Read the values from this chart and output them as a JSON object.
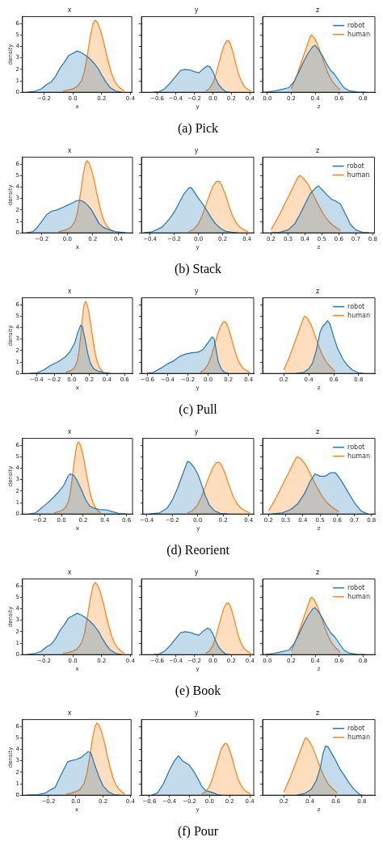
{
  "chart_data": [
    {
      "type": "area",
      "title": "x",
      "xlabel": "x",
      "ylabel": "density",
      "xlim": [
        -0.35,
        0.41
      ],
      "xticks": [
        {
          "value": -0.2,
          "label": "−0.2"
        },
        {
          "value": 0,
          "label": "0.0"
        },
        {
          "value": 0.2,
          "label": "0.2"
        },
        {
          "value": 0.4,
          "label": "0.4"
        }
      ],
      "ylim": [
        0,
        6.6
      ],
      "yticks": [
        0,
        1,
        2,
        3,
        4,
        5,
        6
      ],
      "series": [
        {
          "color": "#1f77b4",
          "x": [
            -0.32,
            -0.26,
            -0.22,
            -0.18,
            -0.15,
            -0.12,
            -0.09,
            -0.06,
            -0.03,
            0.0,
            0.03,
            0.06,
            0.09,
            0.12,
            0.15,
            0.18,
            0.2,
            0.23,
            0.26,
            0.3,
            0.34
          ],
          "values": [
            0,
            0.1,
            0.3,
            0.7,
            0.9,
            1.4,
            2.1,
            2.6,
            3.2,
            3.4,
            3.6,
            3.45,
            3.2,
            2.9,
            2.5,
            2.0,
            1.5,
            0.9,
            0.4,
            0.1,
            0
          ]
        },
        {
          "color": "#ff7f0e",
          "x": [
            -0.07,
            -0.03,
            0.0,
            0.03,
            0.06,
            0.08,
            0.1,
            0.12,
            0.14,
            0.155,
            0.17,
            0.19,
            0.21,
            0.23,
            0.25,
            0.27,
            0.29,
            0.31,
            0.33,
            0.36
          ],
          "values": [
            0.1,
            0.2,
            0.3,
            0.5,
            1.0,
            1.8,
            3.2,
            4.8,
            6.0,
            6.3,
            6.1,
            5.5,
            4.6,
            3.5,
            2.5,
            1.6,
            1.0,
            0.6,
            0.35,
            0.1
          ]
        }
      ]
    },
    {
      "type": "area",
      "title": "y",
      "xlabel": "y",
      "tick_labels": "x",
      "annotations": [
        "(a) Pick"
      ],
      "xlim": [
        -0.77,
        0.44
      ],
      "xticks": [
        {
          "value": -0.6,
          "label": "−0.6"
        },
        {
          "value": -0.4,
          "label": "−0.4"
        },
        {
          "value": -0.2,
          "label": "−0.2"
        },
        {
          "value": 0,
          "label": "0.0"
        },
        {
          "value": 0.2,
          "label": "0.2"
        },
        {
          "value": 0.4,
          "label": "0.4"
        }
      ],
      "ylim": [
        0,
        6.6
      ],
      "yticks": [
        0,
        1,
        2,
        3,
        4,
        5,
        6
      ],
      "series": [
        {
          "color": "#1f77b4",
          "x": [
            -0.64,
            -0.58,
            -0.52,
            -0.46,
            -0.4,
            -0.35,
            -0.3,
            -0.25,
            -0.2,
            -0.15,
            -0.11,
            -0.06,
            -0.03,
            0.0,
            0.03,
            0.06,
            0.1,
            0.14,
            0.18
          ],
          "values": [
            0,
            0.05,
            0.3,
            0.8,
            1.4,
            1.9,
            2.0,
            1.95,
            1.8,
            1.7,
            2.0,
            2.3,
            2.2,
            1.8,
            1.2,
            0.7,
            0.3,
            0.05,
            0
          ]
        },
        {
          "color": "#ff7f0e",
          "x": [
            -0.08,
            -0.04,
            0.0,
            0.03,
            0.06,
            0.09,
            0.12,
            0.15,
            0.17,
            0.19,
            0.22,
            0.25,
            0.28,
            0.31,
            0.34,
            0.37,
            0.41
          ],
          "values": [
            0.1,
            0.3,
            0.8,
            1.5,
            2.4,
            3.3,
            4.1,
            4.5,
            4.5,
            4.2,
            3.4,
            2.4,
            1.5,
            0.9,
            0.5,
            0.3,
            0.1
          ]
        }
      ]
    },
    {
      "type": "area",
      "title": "z",
      "xlabel": "z",
      "tick_labels": "x",
      "legend": "top right",
      "xlim": [
        -0.04,
        0.9
      ],
      "xticks": [
        {
          "value": 0,
          "label": "0.0"
        },
        {
          "value": 0.2,
          "label": "0.2"
        },
        {
          "value": 0.4,
          "label": "0.4"
        },
        {
          "value": 0.6,
          "label": "0.6"
        },
        {
          "value": 0.8,
          "label": "0.8"
        }
      ],
      "ylim": [
        0,
        6.6
      ],
      "yticks": [
        0,
        1,
        2,
        3,
        4,
        5,
        6
      ],
      "series": [
        {
          "name": "robot",
          "color": "#1f77b4",
          "x": [
            -0.02,
            0.05,
            0.12,
            0.18,
            0.22,
            0.26,
            0.3,
            0.34,
            0.38,
            0.4,
            0.43,
            0.46,
            0.5,
            0.53,
            0.56,
            0.6,
            0.64,
            0.68,
            0.75,
            0.82
          ],
          "values": [
            0,
            0.1,
            0.25,
            0.4,
            0.9,
            1.7,
            2.6,
            3.4,
            4.0,
            4.1,
            3.7,
            3.2,
            2.4,
            1.9,
            1.6,
            1.0,
            0.4,
            0.15,
            0.02,
            0
          ]
        },
        {
          "name": "human",
          "color": "#ff7f0e",
          "x": [
            0.2,
            0.22,
            0.25,
            0.28,
            0.31,
            0.34,
            0.36,
            0.37,
            0.39,
            0.42,
            0.45,
            0.48,
            0.51,
            0.54,
            0.57,
            0.61
          ],
          "values": [
            0.3,
            0.8,
            1.6,
            2.5,
            3.4,
            4.3,
            4.9,
            5.0,
            4.8,
            4.2,
            3.3,
            2.4,
            1.6,
            1.0,
            0.6,
            0.2
          ]
        }
      ]
    },
    {
      "type": "area",
      "title": "x",
      "xlabel": "x",
      "ylabel": "density",
      "xlim": [
        -0.35,
        0.51
      ],
      "xticks": [
        {
          "value": -0.2,
          "label": "−0.2"
        },
        {
          "value": 0,
          "label": "0.0"
        },
        {
          "value": 0.2,
          "label": "0.2"
        },
        {
          "value": 0.4,
          "label": "0.4"
        }
      ],
      "ylim": [
        0,
        6.6
      ],
      "yticks": [
        0,
        1,
        2,
        3,
        4,
        5,
        6
      ],
      "series": [
        {
          "color": "#1f77b4",
          "x": [
            -0.32,
            -0.27,
            -0.24,
            -0.2,
            -0.16,
            -0.12,
            -0.08,
            -0.04,
            0.0,
            0.04,
            0.07,
            0.1,
            0.13,
            0.16,
            0.19,
            0.22,
            0.25,
            0.28,
            0.32,
            0.38,
            0.46
          ],
          "values": [
            0,
            0.1,
            0.4,
            1.0,
            1.6,
            1.9,
            2.0,
            2.2,
            2.4,
            2.6,
            2.8,
            2.85,
            2.7,
            2.4,
            2.0,
            1.4,
            0.8,
            0.5,
            0.3,
            0.1,
            0
          ]
        },
        {
          "color": "#ff7f0e",
          "x": [
            -0.07,
            -0.03,
            0.0,
            0.03,
            0.06,
            0.08,
            0.1,
            0.12,
            0.14,
            0.155,
            0.17,
            0.19,
            0.21,
            0.23,
            0.25,
            0.27,
            0.29,
            0.31,
            0.33,
            0.36
          ],
          "values": [
            0.1,
            0.2,
            0.3,
            0.5,
            1.0,
            1.8,
            3.2,
            4.8,
            6.0,
            6.3,
            6.1,
            5.5,
            4.6,
            3.5,
            2.5,
            1.6,
            1.0,
            0.6,
            0.35,
            0.1
          ]
        }
      ]
    },
    {
      "type": "area",
      "title": "y",
      "xlabel": "y",
      "tick_labels": "x",
      "annotations": [
        "(b) Stack"
      ],
      "xlim": [
        -0.47,
        0.455
      ],
      "xticks": [
        {
          "value": -0.4,
          "label": "−0.4"
        },
        {
          "value": -0.2,
          "label": "−0.2"
        },
        {
          "value": 0,
          "label": "0.0"
        },
        {
          "value": 0.2,
          "label": "0.2"
        },
        {
          "value": 0.4,
          "label": "0.4"
        }
      ],
      "ylim": [
        0,
        6.6
      ],
      "yticks": [
        0,
        1,
        2,
        3,
        4,
        5,
        6
      ],
      "series": [
        {
          "color": "#1f77b4",
          "x": [
            -0.45,
            -0.38,
            -0.3,
            -0.24,
            -0.2,
            -0.16,
            -0.12,
            -0.08,
            -0.06,
            -0.03,
            0.0,
            0.03,
            0.06,
            0.1,
            0.14,
            0.18,
            0.22,
            0.28,
            0.32
          ],
          "values": [
            0,
            0.1,
            0.5,
            1.2,
            1.8,
            2.6,
            3.4,
            3.9,
            3.95,
            3.5,
            3.0,
            2.6,
            2.1,
            1.4,
            0.8,
            0.4,
            0.15,
            0.05,
            0
          ]
        },
        {
          "color": "#ff7f0e",
          "x": [
            -0.08,
            -0.04,
            0.0,
            0.03,
            0.06,
            0.09,
            0.12,
            0.15,
            0.17,
            0.19,
            0.22,
            0.25,
            0.28,
            0.31,
            0.34,
            0.37,
            0.41
          ],
          "values": [
            0.1,
            0.3,
            0.8,
            1.5,
            2.4,
            3.3,
            4.1,
            4.5,
            4.5,
            4.2,
            3.4,
            2.4,
            1.5,
            0.9,
            0.5,
            0.3,
            0.1
          ]
        }
      ]
    },
    {
      "type": "area",
      "title": "z",
      "xlabel": "z",
      "tick_labels": "x",
      "legend": "top right",
      "xlim": [
        0.15,
        0.81
      ],
      "xticks": [
        0.2,
        0.3,
        0.4,
        0.5,
        0.6,
        0.7,
        0.8
      ],
      "ylim": [
        0,
        6.6
      ],
      "yticks": [
        0,
        1,
        2,
        3,
        4,
        5,
        6
      ],
      "series": [
        {
          "name": "robot",
          "color": "#1f77b4",
          "x": [
            0.2,
            0.25,
            0.3,
            0.34,
            0.37,
            0.4,
            0.43,
            0.46,
            0.48,
            0.5,
            0.53,
            0.56,
            0.58,
            0.61,
            0.64,
            0.67,
            0.7,
            0.74,
            0.78
          ],
          "values": [
            0,
            0.05,
            0.25,
            0.8,
            1.6,
            2.5,
            3.4,
            3.9,
            4.1,
            3.8,
            3.3,
            2.9,
            2.8,
            2.5,
            1.6,
            0.7,
            0.25,
            0.05,
            0
          ]
        },
        {
          "name": "human",
          "color": "#ff7f0e",
          "x": [
            0.2,
            0.22,
            0.25,
            0.28,
            0.31,
            0.34,
            0.36,
            0.37,
            0.39,
            0.42,
            0.45,
            0.48,
            0.51,
            0.54,
            0.57,
            0.61
          ],
          "values": [
            0.3,
            0.8,
            1.6,
            2.5,
            3.4,
            4.3,
            4.9,
            5.0,
            4.8,
            4.2,
            3.3,
            2.4,
            1.6,
            1.0,
            0.6,
            0.2
          ]
        }
      ]
    },
    {
      "type": "area",
      "title": "x",
      "xlabel": "x",
      "ylabel": "density",
      "xlim": [
        -0.56,
        0.69
      ],
      "xticks": [
        {
          "value": -0.4,
          "label": "−0.4"
        },
        {
          "value": -0.2,
          "label": "−0.2"
        },
        {
          "value": 0,
          "label": "0.0"
        },
        {
          "value": 0.2,
          "label": "0.2"
        },
        {
          "value": 0.4,
          "label": "0.4"
        },
        {
          "value": 0.6,
          "label": "0.6"
        }
      ],
      "ylim": [
        0,
        6.6
      ],
      "yticks": [
        0,
        1,
        2,
        3,
        4,
        5,
        6
      ],
      "series": [
        {
          "color": "#1f77b4",
          "x": [
            -0.48,
            -0.4,
            -0.32,
            -0.24,
            -0.16,
            -0.08,
            -0.02,
            0.03,
            0.07,
            0.1,
            0.12,
            0.15,
            0.18,
            0.21,
            0.25,
            0.3,
            0.36,
            0.44
          ],
          "values": [
            0,
            0.05,
            0.3,
            0.7,
            1.0,
            1.4,
            1.9,
            2.6,
            3.6,
            4.2,
            4.1,
            3.0,
            1.8,
            0.9,
            0.4,
            0.2,
            0.1,
            0
          ]
        },
        {
          "color": "#ff7f0e",
          "x": [
            -0.07,
            -0.03,
            0.0,
            0.03,
            0.06,
            0.08,
            0.1,
            0.12,
            0.14,
            0.155,
            0.17,
            0.19,
            0.21,
            0.23,
            0.25,
            0.27,
            0.29,
            0.31,
            0.33,
            0.36
          ],
          "values": [
            0.1,
            0.2,
            0.3,
            0.5,
            1.0,
            1.8,
            3.2,
            4.8,
            6.0,
            6.3,
            6.1,
            5.5,
            4.6,
            3.5,
            2.5,
            1.6,
            1.0,
            0.6,
            0.35,
            0.1
          ]
        }
      ]
    },
    {
      "type": "area",
      "title": "y",
      "xlabel": "y",
      "tick_labels": "x",
      "annotations": [
        "(c) Pull"
      ],
      "xlim": [
        -0.66,
        0.45
      ],
      "xticks": [
        {
          "value": -0.6,
          "label": "−0.6"
        },
        {
          "value": -0.4,
          "label": "−0.4"
        },
        {
          "value": -0.2,
          "label": "−0.2"
        },
        {
          "value": 0,
          "label": "0.0"
        },
        {
          "value": 0.2,
          "label": "0.2"
        },
        {
          "value": 0.4,
          "label": "0.4"
        }
      ],
      "ylim": [
        0,
        6.6
      ],
      "yticks": [
        0,
        1,
        2,
        3,
        4,
        5,
        6
      ],
      "series": [
        {
          "color": "#1f77b4",
          "x": [
            -0.6,
            -0.54,
            -0.46,
            -0.4,
            -0.34,
            -0.28,
            -0.22,
            -0.16,
            -0.1,
            -0.05,
            0.0,
            0.04,
            0.06,
            0.08,
            0.1,
            0.13,
            0.16,
            0.2
          ],
          "values": [
            0,
            0.1,
            0.5,
            0.85,
            1.1,
            1.5,
            1.7,
            1.8,
            1.85,
            2.1,
            2.7,
            3.2,
            3.0,
            2.0,
            1.0,
            0.4,
            0.1,
            0
          ]
        },
        {
          "color": "#ff7f0e",
          "x": [
            -0.08,
            -0.04,
            0.0,
            0.03,
            0.06,
            0.09,
            0.12,
            0.15,
            0.17,
            0.19,
            0.22,
            0.25,
            0.28,
            0.31,
            0.34,
            0.37,
            0.41
          ],
          "values": [
            0.1,
            0.3,
            0.8,
            1.5,
            2.4,
            3.3,
            4.1,
            4.5,
            4.5,
            4.2,
            3.4,
            2.4,
            1.5,
            0.9,
            0.5,
            0.3,
            0.1
          ]
        }
      ]
    },
    {
      "type": "area",
      "title": "z",
      "xlabel": "z",
      "tick_labels": "x",
      "legend": "top right",
      "xlim": [
        0.03,
        0.93
      ],
      "xticks": [
        0.2,
        0.4,
        0.6,
        0.8
      ],
      "ylim": [
        0,
        6.6
      ],
      "yticks": [
        0,
        1,
        2,
        3,
        4,
        5,
        6
      ],
      "series": [
        {
          "name": "robot",
          "color": "#1f77b4",
          "x": [
            0.3,
            0.36,
            0.4,
            0.43,
            0.46,
            0.49,
            0.51,
            0.53,
            0.55,
            0.57,
            0.6,
            0.63,
            0.67,
            0.71,
            0.75,
            0.8,
            0.84
          ],
          "values": [
            0,
            0.1,
            0.4,
            0.9,
            2.0,
            3.6,
            4.1,
            4.3,
            4.6,
            4.3,
            3.2,
            2.2,
            1.3,
            0.7,
            0.3,
            0.05,
            0
          ]
        },
        {
          "name": "human",
          "color": "#ff7f0e",
          "x": [
            0.2,
            0.22,
            0.25,
            0.28,
            0.31,
            0.34,
            0.36,
            0.37,
            0.39,
            0.42,
            0.45,
            0.48,
            0.51,
            0.54,
            0.57,
            0.61
          ],
          "values": [
            0.3,
            0.8,
            1.6,
            2.5,
            3.4,
            4.3,
            4.9,
            5.0,
            4.8,
            4.2,
            3.3,
            2.4,
            1.6,
            1.0,
            0.6,
            0.2
          ]
        }
      ]
    },
    {
      "type": "area",
      "title": "x",
      "xlabel": "x",
      "ylabel": "density",
      "xlim": [
        -0.36,
        0.655
      ],
      "xticks": [
        {
          "value": -0.2,
          "label": "−0.2"
        },
        {
          "value": 0,
          "label": "0.0"
        },
        {
          "value": 0.2,
          "label": "0.2"
        },
        {
          "value": 0.4,
          "label": "0.4"
        },
        {
          "value": 0.6,
          "label": "0.6"
        }
      ],
      "ylim": [
        0,
        6.6
      ],
      "yticks": [
        0,
        1,
        2,
        3,
        4,
        5,
        6
      ],
      "series": [
        {
          "color": "#1f77b4",
          "x": [
            -0.3,
            -0.24,
            -0.2,
            -0.15,
            -0.1,
            -0.06,
            -0.02,
            0.02,
            0.06,
            0.08,
            0.11,
            0.14,
            0.18,
            0.22,
            0.26,
            0.3,
            0.35,
            0.42,
            0.47,
            0.53,
            0.6
          ],
          "values": [
            0,
            0.1,
            0.4,
            0.8,
            1.2,
            1.6,
            2.0,
            2.5,
            3.3,
            3.5,
            3.4,
            3.0,
            2.2,
            1.3,
            0.7,
            0.5,
            0.4,
            0.35,
            0.2,
            0.05,
            0
          ]
        },
        {
          "color": "#ff7f0e",
          "x": [
            -0.07,
            -0.03,
            0.0,
            0.03,
            0.06,
            0.08,
            0.1,
            0.12,
            0.14,
            0.155,
            0.17,
            0.19,
            0.21,
            0.23,
            0.25,
            0.27,
            0.29,
            0.31,
            0.33,
            0.36
          ],
          "values": [
            0.1,
            0.2,
            0.3,
            0.5,
            1.0,
            1.8,
            3.2,
            4.8,
            6.0,
            6.3,
            6.1,
            5.5,
            4.6,
            3.5,
            2.5,
            1.6,
            1.0,
            0.6,
            0.35,
            0.1
          ]
        }
      ]
    },
    {
      "type": "area",
      "title": "y",
      "xlabel": "y",
      "tick_labels": "x",
      "annotations": [
        "(d) Reorient"
      ],
      "xlim": [
        -0.43,
        0.44
      ],
      "xticks": [
        {
          "value": -0.4,
          "label": "−0.4"
        },
        {
          "value": -0.2,
          "label": "−0.2"
        },
        {
          "value": 0,
          "label": "0.0"
        },
        {
          "value": 0.2,
          "label": "0.2"
        },
        {
          "value": 0.4,
          "label": "0.4"
        }
      ],
      "ylim": [
        0,
        6.6
      ],
      "yticks": [
        0,
        1,
        2,
        3,
        4,
        5,
        6
      ],
      "series": [
        {
          "color": "#1f77b4",
          "x": [
            -0.38,
            -0.3,
            -0.24,
            -0.2,
            -0.16,
            -0.12,
            -0.08,
            -0.06,
            -0.03,
            0.0,
            0.03,
            0.06,
            0.09,
            0.13,
            0.18,
            0.24
          ],
          "values": [
            0,
            0.1,
            0.5,
            1.2,
            2.2,
            3.4,
            4.6,
            4.5,
            4.1,
            3.5,
            2.6,
            1.6,
            0.8,
            0.3,
            0.05,
            0
          ]
        },
        {
          "color": "#ff7f0e",
          "x": [
            -0.08,
            -0.04,
            0.0,
            0.03,
            0.06,
            0.09,
            0.12,
            0.15,
            0.17,
            0.19,
            0.22,
            0.25,
            0.28,
            0.31,
            0.34,
            0.37,
            0.41
          ],
          "values": [
            0.1,
            0.3,
            0.8,
            1.5,
            2.4,
            3.3,
            4.1,
            4.5,
            4.5,
            4.2,
            3.4,
            2.4,
            1.5,
            0.9,
            0.5,
            0.3,
            0.1
          ]
        }
      ]
    },
    {
      "type": "area",
      "title": "z",
      "xlabel": "z",
      "tick_labels": "x",
      "legend": "top right",
      "xlim": [
        0.165,
        0.82
      ],
      "xticks": [
        0.2,
        0.3,
        0.4,
        0.5,
        0.6,
        0.7,
        0.8
      ],
      "ylim": [
        0,
        6.6
      ],
      "yticks": [
        0,
        1,
        2,
        3,
        4,
        5,
        6
      ],
      "series": [
        {
          "name": "robot",
          "color": "#1f77b4",
          "x": [
            0.22,
            0.28,
            0.33,
            0.37,
            0.41,
            0.44,
            0.47,
            0.5,
            0.53,
            0.56,
            0.59,
            0.62,
            0.66,
            0.7,
            0.74,
            0.78
          ],
          "values": [
            0,
            0.1,
            0.4,
            0.9,
            1.8,
            2.8,
            3.5,
            3.3,
            3.3,
            3.6,
            3.6,
            3.0,
            2.0,
            1.0,
            0.25,
            0
          ]
        },
        {
          "name": "human",
          "color": "#ff7f0e",
          "x": [
            0.2,
            0.22,
            0.25,
            0.28,
            0.31,
            0.34,
            0.36,
            0.37,
            0.39,
            0.42,
            0.45,
            0.48,
            0.51,
            0.54,
            0.57,
            0.61
          ],
          "values": [
            0.3,
            0.8,
            1.6,
            2.5,
            3.4,
            4.3,
            4.9,
            5.0,
            4.8,
            4.2,
            3.3,
            2.4,
            1.6,
            1.0,
            0.6,
            0.2
          ]
        }
      ]
    },
    {
      "type": "area",
      "title": "x",
      "xlabel": "x",
      "ylabel": "density",
      "xlim": [
        -0.35,
        0.41
      ],
      "xticks": [
        {
          "value": -0.2,
          "label": "−0.2"
        },
        {
          "value": 0,
          "label": "0.0"
        },
        {
          "value": 0.2,
          "label": "0.2"
        },
        {
          "value": 0.4,
          "label": "0.4"
        }
      ],
      "ylim": [
        0,
        6.6
      ],
      "yticks": [
        0,
        1,
        2,
        3,
        4,
        5,
        6
      ],
      "series": [
        {
          "color": "#1f77b4",
          "x": [
            -0.32,
            -0.26,
            -0.22,
            -0.18,
            -0.15,
            -0.12,
            -0.09,
            -0.06,
            -0.03,
            0.0,
            0.03,
            0.06,
            0.09,
            0.12,
            0.15,
            0.18,
            0.2,
            0.23,
            0.26,
            0.3,
            0.34
          ],
          "values": [
            0,
            0.1,
            0.3,
            0.7,
            0.9,
            1.4,
            2.1,
            2.6,
            3.2,
            3.4,
            3.6,
            3.45,
            3.2,
            2.9,
            2.5,
            2.0,
            1.5,
            0.9,
            0.4,
            0.1,
            0
          ]
        },
        {
          "color": "#ff7f0e",
          "x": [
            -0.07,
            -0.03,
            0.0,
            0.03,
            0.06,
            0.08,
            0.1,
            0.12,
            0.14,
            0.155,
            0.17,
            0.19,
            0.21,
            0.23,
            0.25,
            0.27,
            0.29,
            0.31,
            0.33,
            0.36
          ],
          "values": [
            0.1,
            0.2,
            0.3,
            0.5,
            1.0,
            1.8,
            3.2,
            4.8,
            6.0,
            6.3,
            6.1,
            5.5,
            4.6,
            3.5,
            2.5,
            1.6,
            1.0,
            0.6,
            0.35,
            0.1
          ]
        }
      ]
    },
    {
      "type": "area",
      "title": "y",
      "xlabel": "y",
      "tick_labels": "x",
      "annotations": [
        "(e) Book"
      ],
      "xlim": [
        -0.77,
        0.44
      ],
      "xticks": [
        {
          "value": -0.6,
          "label": "−0.6"
        },
        {
          "value": -0.4,
          "label": "−0.4"
        },
        {
          "value": -0.2,
          "label": "−0.2"
        },
        {
          "value": 0,
          "label": "0.0"
        },
        {
          "value": 0.2,
          "label": "0.2"
        },
        {
          "value": 0.4,
          "label": "0.4"
        }
      ],
      "ylim": [
        0,
        6.6
      ],
      "yticks": [
        0,
        1,
        2,
        3,
        4,
        5,
        6
      ],
      "series": [
        {
          "color": "#1f77b4",
          "x": [
            -0.64,
            -0.58,
            -0.52,
            -0.46,
            -0.4,
            -0.35,
            -0.3,
            -0.25,
            -0.2,
            -0.15,
            -0.11,
            -0.06,
            -0.03,
            0.0,
            0.03,
            0.06,
            0.1,
            0.14,
            0.18
          ],
          "values": [
            0,
            0.05,
            0.3,
            0.8,
            1.4,
            1.9,
            2.0,
            1.95,
            1.8,
            1.7,
            2.0,
            2.3,
            2.2,
            1.8,
            1.2,
            0.7,
            0.3,
            0.05,
            0
          ]
        },
        {
          "color": "#ff7f0e",
          "x": [
            -0.08,
            -0.04,
            0.0,
            0.03,
            0.06,
            0.09,
            0.12,
            0.15,
            0.17,
            0.19,
            0.22,
            0.25,
            0.28,
            0.31,
            0.34,
            0.37,
            0.41
          ],
          "values": [
            0.1,
            0.3,
            0.8,
            1.5,
            2.4,
            3.3,
            4.1,
            4.5,
            4.5,
            4.2,
            3.4,
            2.4,
            1.5,
            0.9,
            0.5,
            0.3,
            0.1
          ]
        }
      ]
    },
    {
      "type": "area",
      "title": "z",
      "xlabel": "z",
      "tick_labels": "x",
      "legend": "top right",
      "xlim": [
        -0.04,
        0.9
      ],
      "xticks": [
        {
          "value": 0,
          "label": "0.0"
        },
        {
          "value": 0.2,
          "label": "0.2"
        },
        {
          "value": 0.4,
          "label": "0.4"
        },
        {
          "value": 0.6,
          "label": "0.6"
        },
        {
          "value": 0.8,
          "label": "0.8"
        }
      ],
      "ylim": [
        0,
        6.6
      ],
      "yticks": [
        0,
        1,
        2,
        3,
        4,
        5,
        6
      ],
      "series": [
        {
          "name": "robot",
          "color": "#1f77b4",
          "x": [
            -0.02,
            0.05,
            0.12,
            0.18,
            0.22,
            0.26,
            0.3,
            0.34,
            0.38,
            0.4,
            0.43,
            0.46,
            0.5,
            0.53,
            0.56,
            0.6,
            0.64,
            0.68,
            0.75,
            0.82
          ],
          "values": [
            0,
            0.1,
            0.25,
            0.4,
            0.9,
            1.7,
            2.6,
            3.4,
            4.0,
            4.1,
            3.7,
            3.2,
            2.4,
            1.9,
            1.6,
            1.0,
            0.4,
            0.15,
            0.02,
            0
          ]
        },
        {
          "name": "human",
          "color": "#ff7f0e",
          "x": [
            0.2,
            0.22,
            0.25,
            0.28,
            0.31,
            0.34,
            0.36,
            0.37,
            0.39,
            0.42,
            0.45,
            0.48,
            0.51,
            0.54,
            0.57,
            0.61
          ],
          "values": [
            0.3,
            0.8,
            1.6,
            2.5,
            3.4,
            4.3,
            4.9,
            5.0,
            4.8,
            4.2,
            3.3,
            2.4,
            1.6,
            1.0,
            0.6,
            0.2
          ]
        }
      ]
    },
    {
      "type": "area",
      "title": "x",
      "xlabel": "x",
      "ylabel": "density",
      "xlim": [
        -0.39,
        0.405
      ],
      "xticks": [
        {
          "value": -0.2,
          "label": "−0.2"
        },
        {
          "value": 0,
          "label": "0.0"
        },
        {
          "value": 0.2,
          "label": "0.2"
        },
        {
          "value": 0.4,
          "label": "0.4"
        }
      ],
      "ylim": [
        0,
        6.6
      ],
      "yticks": [
        0,
        1,
        2,
        3,
        4,
        5,
        6
      ],
      "series": [
        {
          "color": "#1f77b4",
          "x": [
            -0.36,
            -0.28,
            -0.22,
            -0.18,
            -0.15,
            -0.12,
            -0.09,
            -0.06,
            -0.04,
            0.0,
            0.04,
            0.07,
            0.09,
            0.11,
            0.14,
            0.17,
            0.2,
            0.24,
            0.28,
            0.32
          ],
          "values": [
            0,
            0.05,
            0.2,
            0.5,
            0.7,
            1.5,
            2.2,
            2.9,
            3.0,
            3.1,
            3.3,
            3.6,
            3.8,
            3.7,
            2.6,
            1.6,
            0.8,
            0.3,
            0.05,
            0
          ]
        },
        {
          "color": "#ff7f0e",
          "x": [
            -0.07,
            -0.03,
            0.0,
            0.03,
            0.06,
            0.08,
            0.1,
            0.12,
            0.14,
            0.155,
            0.17,
            0.19,
            0.21,
            0.23,
            0.25,
            0.27,
            0.29,
            0.31,
            0.33,
            0.36
          ],
          "values": [
            0.1,
            0.2,
            0.3,
            0.5,
            1.0,
            1.8,
            3.2,
            4.8,
            6.0,
            6.3,
            6.1,
            5.5,
            4.6,
            3.5,
            2.5,
            1.6,
            1.0,
            0.6,
            0.35,
            0.1
          ]
        }
      ]
    },
    {
      "type": "area",
      "title": "y",
      "xlabel": "y",
      "tick_labels": "x",
      "annotations": [
        "(f) Pour"
      ],
      "xlim": [
        -0.68,
        0.44
      ],
      "xticks": [
        {
          "value": -0.6,
          "label": "−0.6"
        },
        {
          "value": -0.4,
          "label": "−0.4"
        },
        {
          "value": -0.2,
          "label": "−0.2"
        },
        {
          "value": 0,
          "label": "0.0"
        },
        {
          "value": 0.2,
          "label": "0.2"
        },
        {
          "value": 0.4,
          "label": "0.4"
        }
      ],
      "ylim": [
        0,
        6.6
      ],
      "yticks": [
        0,
        1,
        2,
        3,
        4,
        5,
        6
      ],
      "series": [
        {
          "color": "#1f77b4",
          "x": [
            -0.58,
            -0.52,
            -0.46,
            -0.4,
            -0.35,
            -0.31,
            -0.27,
            -0.2,
            -0.16,
            -0.12,
            -0.08,
            -0.04,
            0.0,
            0.04,
            0.08,
            0.12
          ],
          "values": [
            0,
            0.2,
            1.0,
            2.2,
            3.0,
            3.45,
            3.0,
            2.6,
            2.1,
            1.5,
            0.8,
            0.4,
            0.3,
            0.2,
            0.05,
            0
          ]
        },
        {
          "color": "#ff7f0e",
          "x": [
            -0.08,
            -0.04,
            0.0,
            0.03,
            0.06,
            0.09,
            0.12,
            0.15,
            0.17,
            0.19,
            0.22,
            0.25,
            0.28,
            0.31,
            0.34,
            0.37,
            0.41
          ],
          "values": [
            0.1,
            0.3,
            0.8,
            1.5,
            2.4,
            3.3,
            4.1,
            4.5,
            4.5,
            4.2,
            3.4,
            2.4,
            1.5,
            0.9,
            0.5,
            0.3,
            0.1
          ]
        }
      ]
    },
    {
      "type": "area",
      "title": "z",
      "xlabel": "z",
      "tick_labels": "x",
      "legend": "top right",
      "xlim": [
        0.036,
        0.9
      ],
      "xticks": [
        0.2,
        0.4,
        0.6,
        0.8
      ],
      "ylim": [
        0,
        6.6
      ],
      "yticks": [
        0,
        1,
        2,
        3,
        4,
        5,
        6
      ],
      "series": [
        {
          "name": "robot",
          "color": "#1f77b4",
          "x": [
            0.3,
            0.36,
            0.41,
            0.45,
            0.48,
            0.5,
            0.52,
            0.54,
            0.57,
            0.6,
            0.63,
            0.66,
            0.7,
            0.74,
            0.78,
            0.8
          ],
          "values": [
            0,
            0.15,
            0.5,
            1.3,
            2.4,
            3.6,
            4.3,
            4.2,
            3.6,
            3.0,
            2.3,
            1.8,
            1.1,
            0.5,
            0.1,
            0
          ]
        },
        {
          "name": "human",
          "color": "#ff7f0e",
          "x": [
            0.2,
            0.22,
            0.25,
            0.28,
            0.31,
            0.34,
            0.36,
            0.37,
            0.39,
            0.42,
            0.45,
            0.48,
            0.51,
            0.54,
            0.57,
            0.61
          ],
          "values": [
            0.3,
            0.8,
            1.6,
            2.5,
            3.4,
            4.3,
            4.9,
            5.0,
            4.8,
            4.2,
            3.3,
            2.4,
            1.6,
            1.0,
            0.6,
            0.2
          ]
        }
      ]
    }
  ]
}
